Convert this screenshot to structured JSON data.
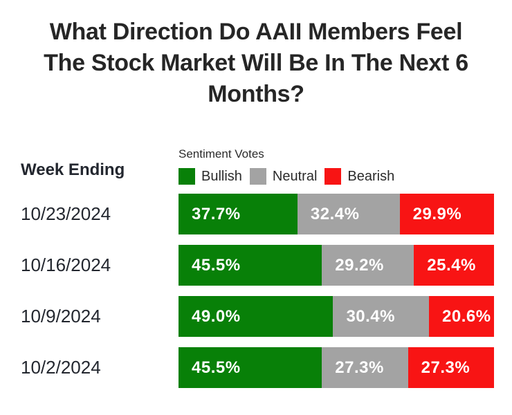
{
  "title_lines": [
    "What Direction Do AAII Members Feel",
    "The Stock Market Will Be In The Next 6",
    "Months?"
  ],
  "table": {
    "row_header": "Week Ending",
    "legend_title": "Sentiment Votes"
  },
  "colors": {
    "bullish": "#088008",
    "neutral": "#a3a3a3",
    "bearish": "#f81414",
    "title_text": "#262626",
    "label_text": "#23272f",
    "value_text": "#ffffff"
  },
  "chart_data": {
    "type": "bar",
    "orientation": "horizontal",
    "stacked": true,
    "title": "What Direction Do AAII Members Feel The Stock Market Will Be In The Next 6 Months?",
    "legend_title": "Sentiment Votes",
    "legend_position": "top",
    "grid": false,
    "xlim": [
      0,
      100
    ],
    "value_suffix": "%",
    "value_decimals": 1,
    "categories_label": "Week Ending",
    "categories": [
      "10/23/2024",
      "10/16/2024",
      "10/9/2024",
      "10/2/2024"
    ],
    "series": [
      {
        "name": "Bullish",
        "color_key": "bullish",
        "values": [
          37.7,
          45.5,
          49.0,
          45.5
        ]
      },
      {
        "name": "Neutral",
        "color_key": "neutral",
        "values": [
          32.4,
          29.2,
          30.4,
          27.3
        ]
      },
      {
        "name": "Bearish",
        "color_key": "bearish",
        "values": [
          29.9,
          25.4,
          20.6,
          27.3
        ]
      }
    ]
  }
}
